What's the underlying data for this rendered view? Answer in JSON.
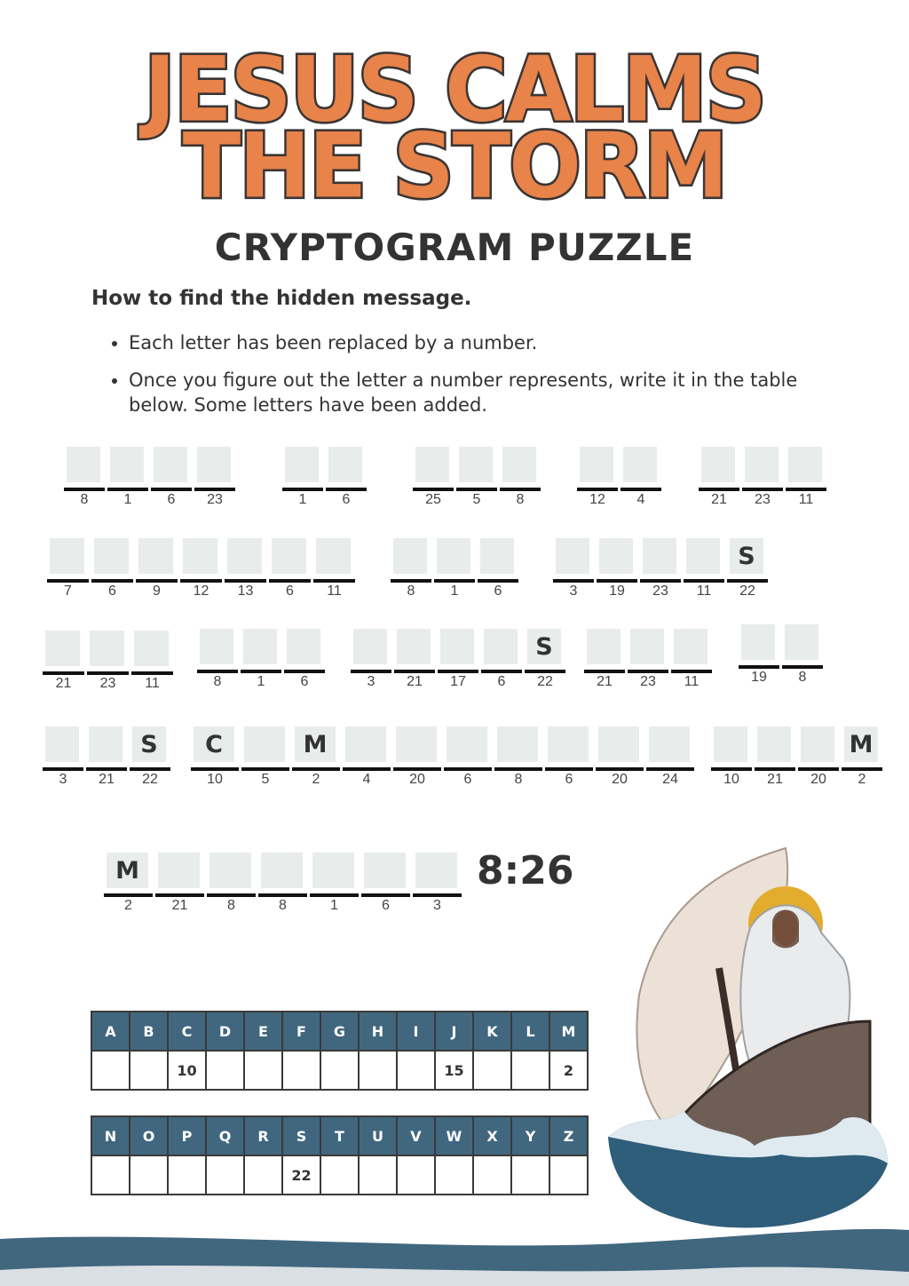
{
  "title_line1": "JESUS CALMS",
  "title_line2": "THE STORM",
  "subtitle": "CRYPTOGRAM PUZZLE",
  "instructions": {
    "heading": "How to find the hidden message.",
    "bullets": [
      "Each letter has been replaced by a number.",
      "Once you figure out the letter a number represents, write it in the table below. Some letters have been added."
    ]
  },
  "puzzle_words": [
    {
      "nums": [
        "8",
        "1",
        "6",
        "23"
      ],
      "letters": [
        "",
        "",
        "",
        ""
      ]
    },
    {
      "nums": [
        "1",
        "6"
      ],
      "letters": [
        "",
        ""
      ]
    },
    {
      "nums": [
        "25",
        "5",
        "8"
      ],
      "letters": [
        "",
        "",
        ""
      ]
    },
    {
      "nums": [
        "12",
        "4"
      ],
      "letters": [
        "",
        ""
      ]
    },
    {
      "nums": [
        "21",
        "23",
        "11"
      ],
      "letters": [
        "",
        "",
        ""
      ]
    },
    {
      "nums": [
        "7",
        "6",
        "9",
        "12",
        "13",
        "6",
        "11"
      ],
      "letters": [
        "",
        "",
        "",
        "",
        "",
        "",
        ""
      ]
    },
    {
      "nums": [
        "8",
        "1",
        "6"
      ],
      "letters": [
        "",
        "",
        ""
      ]
    },
    {
      "nums": [
        "3",
        "19",
        "23",
        "11",
        "22"
      ],
      "letters": [
        "",
        "",
        "",
        "",
        "S"
      ]
    },
    {
      "nums": [
        "21",
        "23",
        "11"
      ],
      "letters": [
        "",
        "",
        ""
      ]
    },
    {
      "nums": [
        "8",
        "1",
        "6"
      ],
      "letters": [
        "",
        "",
        ""
      ]
    },
    {
      "nums": [
        "3",
        "21",
        "17",
        "6",
        "22"
      ],
      "letters": [
        "",
        "",
        "",
        "",
        "S"
      ]
    },
    {
      "nums": [
        "21",
        "23",
        "11"
      ],
      "letters": [
        "",
        "",
        ""
      ]
    },
    {
      "nums": [
        "19",
        "8"
      ],
      "letters": [
        "",
        ""
      ]
    },
    {
      "nums": [
        "3",
        "21",
        "22"
      ],
      "letters": [
        "",
        "",
        "S"
      ]
    },
    {
      "nums": [
        "10",
        "5",
        "2",
        "4",
        "20",
        "6",
        "8",
        "6",
        "20",
        "24"
      ],
      "letters": [
        "C",
        "",
        "M",
        "",
        "",
        "",
        "",
        "",
        "",
        ""
      ]
    },
    {
      "nums": [
        "10",
        "21",
        "20",
        "2"
      ],
      "letters": [
        "",
        "",
        "",
        "M"
      ]
    },
    {
      "nums": [
        "2",
        "21",
        "8",
        "8",
        "1",
        "6",
        "3"
      ],
      "letters": [
        "M",
        "",
        "",
        "",
        "",
        "",
        ""
      ]
    }
  ],
  "reference": "8:26",
  "key_table": {
    "row1_letters": [
      "A",
      "B",
      "C",
      "D",
      "E",
      "F",
      "G",
      "H",
      "I",
      "J",
      "K",
      "L",
      "M"
    ],
    "row1_values": [
      "",
      "",
      "10",
      "",
      "",
      "",
      "",
      "",
      "",
      "15",
      "",
      "",
      "2"
    ],
    "row2_letters": [
      "N",
      "O",
      "P",
      "Q",
      "R",
      "S",
      "T",
      "U",
      "V",
      "W",
      "X",
      "Y",
      "Z"
    ],
    "row2_values": [
      "",
      "",
      "",
      "",
      "",
      "22",
      "",
      "",
      "",
      "",
      "",
      "",
      ""
    ]
  },
  "colors": {
    "title": "#e8834a",
    "table_header": "#41677f",
    "wave": "#41677f"
  }
}
